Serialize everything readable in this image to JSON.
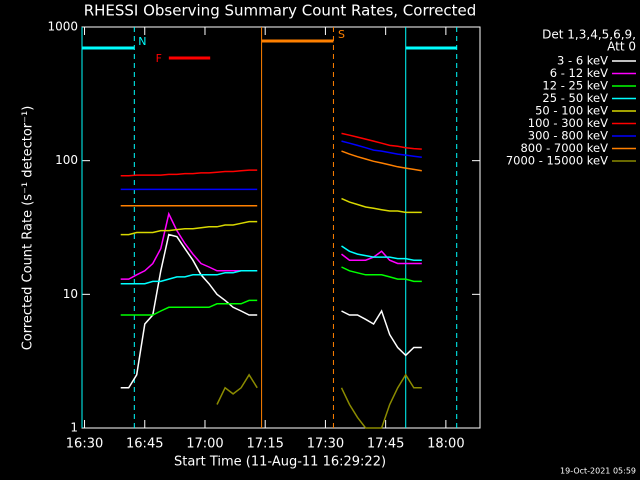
{
  "chart_data": {
    "type": "line",
    "title": "RHESSI Observing Summary Count Rates, Corrected",
    "x_label": "Start Time (11-Aug-11 16:29:22)",
    "y_label": "Corrected Count Rate (s⁻¹ detector⁻¹)",
    "legend_title": [
      "Det 1,3,4,5,6,9,",
      "Att 0"
    ],
    "timestamp": "19-Oct-2021 05:59",
    "log_y": true,
    "xlim": [
      989.37,
      1088.5
    ],
    "ylim": [
      1,
      1000
    ],
    "xticks": [
      {
        "value": 990,
        "label": "16:30"
      },
      {
        "value": 1005,
        "label": "16:45"
      },
      {
        "value": 1020,
        "label": "17:00"
      },
      {
        "value": 1035,
        "label": "17:15"
      },
      {
        "value": 1050,
        "label": "17:30"
      },
      {
        "value": 1065,
        "label": "17:45"
      },
      {
        "value": 1080,
        "label": "18:00"
      }
    ],
    "yticks": [
      1,
      10,
      100,
      1000
    ],
    "x": [
      999,
      1001,
      1003,
      1005,
      1007,
      1009,
      1011,
      1013,
      1015,
      1017,
      1019,
      1021,
      1023,
      1025,
      1027,
      1029,
      1031,
      1033,
      1044,
      1054,
      1056,
      1058,
      1060,
      1062,
      1064,
      1066,
      1068,
      1070,
      1072,
      1074
    ],
    "series": [
      {
        "name": "3 - 6 keV",
        "color": "#ffffff",
        "values": [
          2,
          2,
          2.5,
          6,
          7,
          15,
          28,
          27,
          22,
          18,
          14,
          12,
          10,
          9,
          8,
          7.5,
          7,
          7,
          null,
          7.5,
          7,
          7,
          6.5,
          6,
          7.5,
          5,
          4,
          3.5,
          4,
          4
        ]
      },
      {
        "name": "6 - 12 keV",
        "color": "#ff00ff",
        "values": [
          13,
          13,
          14,
          15,
          17,
          22,
          40,
          30,
          24,
          20,
          17,
          16,
          15,
          15,
          15,
          15,
          15,
          15,
          null,
          20,
          18,
          18,
          18,
          19,
          21,
          18,
          17,
          17,
          17,
          17
        ]
      },
      {
        "name": "12 - 25 keV",
        "color": "#00ff00",
        "values": [
          7,
          7,
          7,
          7,
          7,
          7.5,
          8,
          8,
          8,
          8,
          8,
          8,
          8.5,
          8.5,
          8.5,
          8.5,
          9,
          9,
          null,
          16,
          15,
          14.5,
          14,
          14,
          14,
          13.5,
          13,
          13,
          12.5,
          12.5
        ]
      },
      {
        "name": "25 - 50 keV",
        "color": "#00ffff",
        "values": [
          12,
          12,
          12,
          12,
          12.5,
          12.5,
          13,
          13.5,
          13.5,
          14,
          14,
          14,
          14,
          14.5,
          14.5,
          15,
          15,
          15,
          null,
          23,
          21,
          20,
          19.5,
          19,
          19,
          19,
          18.5,
          18.5,
          18,
          18
        ]
      },
      {
        "name": "50 - 100 keV",
        "color": "#d8d800",
        "values": [
          28,
          28,
          29,
          29,
          29,
          30,
          30,
          30.5,
          31,
          31,
          31.5,
          32,
          32,
          33,
          33,
          34,
          35,
          35,
          null,
          52,
          49,
          47,
          45,
          44,
          43,
          42,
          42,
          41,
          41,
          41
        ]
      },
      {
        "name": "100 - 300 keV",
        "color": "#ff0000",
        "values": [
          77,
          77,
          78,
          78,
          78,
          78,
          79,
          79,
          80,
          80,
          81,
          81,
          82,
          83,
          83,
          84,
          85,
          85,
          null,
          160,
          155,
          150,
          145,
          140,
          135,
          130,
          128,
          125,
          123,
          122
        ]
      },
      {
        "name": "300 - 800 keV",
        "color": "#0000ff",
        "values": [
          61,
          61,
          61,
          61,
          61,
          61,
          61,
          61,
          61,
          61,
          61,
          61,
          61,
          61,
          61,
          61,
          61,
          61,
          null,
          140,
          135,
          130,
          125,
          120,
          118,
          115,
          112,
          110,
          108,
          106
        ]
      },
      {
        "name": "800 - 7000 keV",
        "color": "#ff8000",
        "values": [
          46,
          46,
          46,
          46,
          46,
          46,
          46,
          46,
          46,
          46,
          46,
          46,
          46,
          46,
          46,
          46,
          46,
          46,
          null,
          118,
          112,
          107,
          103,
          99,
          96,
          93,
          90,
          88,
          86,
          84
        ]
      },
      {
        "name": "7000 - 15000 keV",
        "color": "#8b8b00",
        "values": [
          null,
          null,
          null,
          null,
          null,
          null,
          null,
          null,
          null,
          null,
          null,
          null,
          1.5,
          2,
          1.8,
          2,
          2.5,
          2,
          null,
          2,
          1.5,
          1.2,
          1,
          1,
          1,
          1.5,
          2,
          2.5,
          2,
          2
        ]
      }
    ],
    "night": [
      {
        "label": "N",
        "color": "#00ffff",
        "x0": 989.37,
        "x1": 1002.4
      },
      {
        "label": null,
        "color": "#00ffff",
        "x0": 1070,
        "x1": 1082.7
      }
    ],
    "saa": [
      {
        "label": "S",
        "color": "#ff8000",
        "x0": 1034.1,
        "x1": 1052
      }
    ],
    "flares": [
      {
        "label": "F",
        "color": "#ff0000",
        "x0": 1011,
        "x1": 1021.3
      }
    ]
  }
}
